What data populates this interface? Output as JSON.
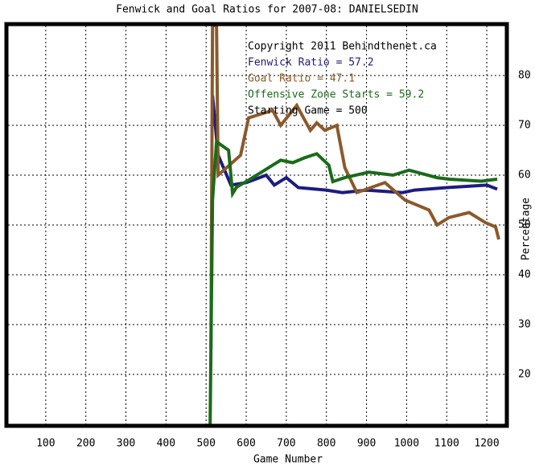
{
  "chart_data": {
    "type": "line",
    "title": "Fenwick and Goal Ratios for 2007-08: DANIELSEDIN",
    "x_label": "Game Number",
    "y_label": "Percentage",
    "annotations": [
      {
        "text": "Copyright 2011 Behindthenet.ca",
        "color": "#000000"
      },
      {
        "text": "Fenwick Ratio = 57.2",
        "color": "#1c1c80"
      },
      {
        "text": "Goal Ratio = 47.1",
        "color": "#8b5a2b"
      },
      {
        "text": "Offensive Zone Starts = 59.2",
        "color": "#1a6b1a"
      },
      {
        "text": "Starting Game = 500",
        "color": "#000000"
      }
    ],
    "xlim": [
      6,
      1246
    ],
    "ylim": [
      10,
      90
    ],
    "xticks": [
      100,
      200,
      300,
      400,
      500,
      600,
      700,
      800,
      900,
      1000,
      1100,
      1200
    ],
    "yticks": [
      20,
      30,
      40,
      50,
      60,
      70,
      80
    ],
    "grid": true,
    "series": [
      {
        "color": "#1c1c80",
        "x": [
          516,
          530,
          562,
          600,
          650,
          670,
          700,
          730,
          800,
          840,
          900,
          990,
          1020,
          1100,
          1200,
          1226
        ],
        "values": [
          76,
          64,
          58,
          58.5,
          60,
          58,
          59.5,
          57.5,
          57,
          56.5,
          57,
          56.5,
          57,
          57.5,
          58,
          57.2
        ]
      },
      {
        "color": "#8b5a2b",
        "x": [
          512,
          516,
          526,
          530,
          586,
          606,
          666,
          686,
          726,
          760,
          776,
          796,
          826,
          846,
          876,
          946,
          996,
          1056,
          1076,
          1106,
          1156,
          1196,
          1222,
          1230
        ],
        "values": [
          25,
          90,
          90,
          60,
          64,
          71.5,
          73,
          70,
          74,
          69,
          70.5,
          69,
          70,
          61.5,
          56.5,
          58.5,
          55,
          53,
          50,
          51.5,
          52.5,
          50.5,
          49.6,
          47.1
        ]
      },
      {
        "color": "#1a6b1a",
        "x": [
          510,
          516,
          526,
          556,
          566,
          576,
          606,
          646,
          666,
          686,
          716,
          746,
          776,
          806,
          816,
          846,
          906,
          966,
          1006,
          1076,
          1106,
          1186,
          1226
        ],
        "values": [
          10,
          55,
          66.7,
          65,
          56.3,
          57.6,
          59,
          61,
          62,
          63,
          62.5,
          63.5,
          64.3,
          62,
          58.7,
          59.5,
          60.6,
          60,
          61,
          59.5,
          59.2,
          58.8,
          59.2
        ]
      }
    ]
  }
}
